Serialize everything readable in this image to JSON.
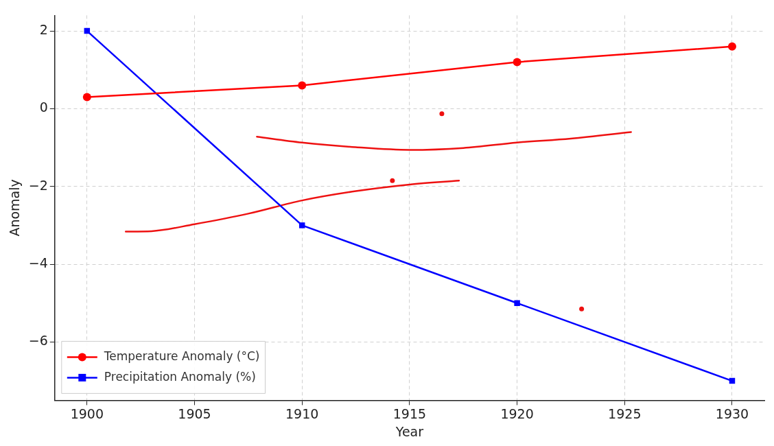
{
  "chart_data": {
    "type": "line",
    "xlabel": "Year",
    "ylabel": "Anomaly",
    "x": [
      1900,
      1910,
      1920,
      1930
    ],
    "series": [
      {
        "name": "Temperature Anomaly (°C)",
        "color": "#ff0000",
        "values": [
          0.3,
          0.6,
          1.2,
          1.6
        ],
        "marker": "circle"
      },
      {
        "name": "Precipitation Anomaly (%)",
        "color": "#0000ff",
        "values": [
          2,
          -3,
          -5,
          -7
        ],
        "marker": "square"
      },
      {
        "color": "#ee1111",
        "x": [
          1907.9,
          1910,
          1912.5,
          1915,
          1917.5,
          1920,
          1922.5,
          1925.3
        ],
        "values": [
          -0.72,
          -0.87,
          -0.99,
          -1.06,
          -1.01,
          -0.87,
          -0.77,
          -0.6
        ],
        "marker": "none"
      },
      {
        "color": "#ee1111",
        "x": [
          1901.8,
          1903,
          1905,
          1907.5,
          1910,
          1912.5,
          1915,
          1917.3
        ],
        "values": [
          -3.16,
          -3.15,
          -2.97,
          -2.7,
          -2.36,
          -2.12,
          -1.95,
          -1.85
        ],
        "marker": "none"
      },
      {
        "type": "scatter",
        "color": "#ee1111",
        "x": [
          1916.5,
          1914.2,
          1923
        ],
        "values": [
          -0.13,
          -1.85,
          -5.15
        ],
        "marker": "circle"
      }
    ],
    "xlim": [
      1898.5,
      1931.5
    ],
    "xticks": [
      1900,
      1905,
      1910,
      1915,
      1920,
      1925,
      1930
    ],
    "ylim": [
      -7.5,
      2.4
    ],
    "yticks": [
      -6,
      -4,
      -2,
      0,
      2
    ],
    "grid": true,
    "legend": "bottom left",
    "line_style": "solid"
  }
}
